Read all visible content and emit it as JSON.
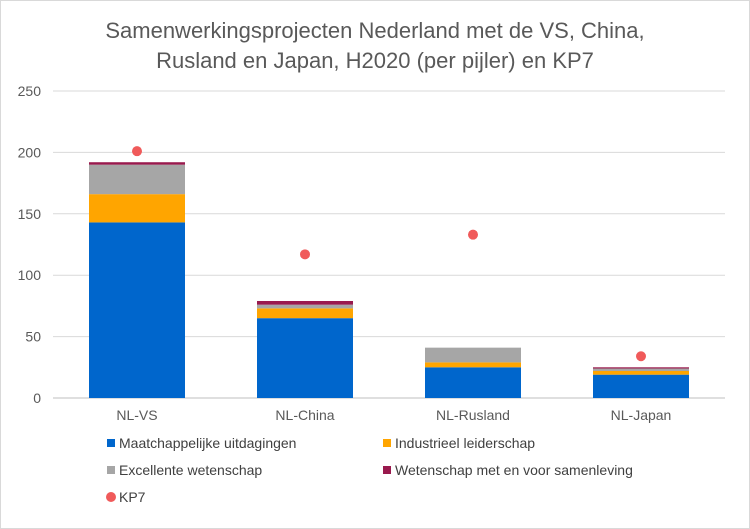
{
  "chart_data": {
    "type": "bar",
    "stacked": true,
    "title_lines": [
      "Samenwerkingsprojecten Nederland met de VS, China,",
      "Rusland en Japan, H2020 (per pijler) en KP7"
    ],
    "categories": [
      "NL-VS",
      "NL-China",
      "NL-Rusland",
      "NL-Japan"
    ],
    "ylim": [
      0,
      250
    ],
    "yticks": [
      "0",
      "50",
      "100",
      "150",
      "200",
      "250"
    ],
    "grid": true,
    "legend_position": "bottom",
    "series": [
      {
        "name": "Maatchappelijke uitdagingen",
        "color": "#0066cc",
        "values": [
          143,
          65,
          25,
          19
        ]
      },
      {
        "name": "Industrieel leiderschap",
        "color": "#ffa500",
        "values": [
          23,
          8,
          4,
          3
        ]
      },
      {
        "name": "Excellente wetenschap",
        "color": "#a6a6a6",
        "values": [
          24,
          3,
          12,
          2
        ]
      },
      {
        "name": "Wetenschap met en voor samenleving",
        "color": "#99194d",
        "values": [
          2,
          3,
          0,
          1
        ]
      }
    ],
    "markers": [
      {
        "name": "KP7",
        "color": "#f05a5a",
        "values": [
          201,
          117,
          133,
          34
        ]
      }
    ]
  }
}
